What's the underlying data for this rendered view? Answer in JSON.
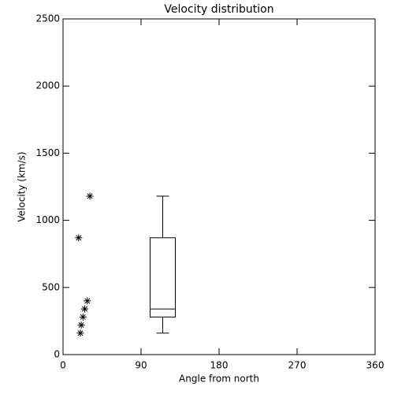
{
  "chart_data": {
    "type": "scatter",
    "title": "Velocity distribution",
    "x_label": "Angle from north",
    "y_label": "Velocity (km/s)",
    "series": [
      {
        "color": "#000000",
        "x": [
          18,
          31,
          28,
          25,
          23,
          21,
          20
        ],
        "values": [
          870,
          1180,
          400,
          340,
          280,
          220,
          160
        ]
      }
    ],
    "boxes": [
      {
        "x": 115,
        "min": 160,
        "q1": 280,
        "median": 340,
        "q3": 870,
        "max": 1180
      }
    ],
    "xlim": [
      0,
      360
    ],
    "xticks": [
      0,
      90,
      180,
      270,
      360
    ],
    "ylim": [
      0,
      2500
    ],
    "yticks": [
      0,
      500,
      1000,
      1500,
      2000,
      2500
    ]
  }
}
